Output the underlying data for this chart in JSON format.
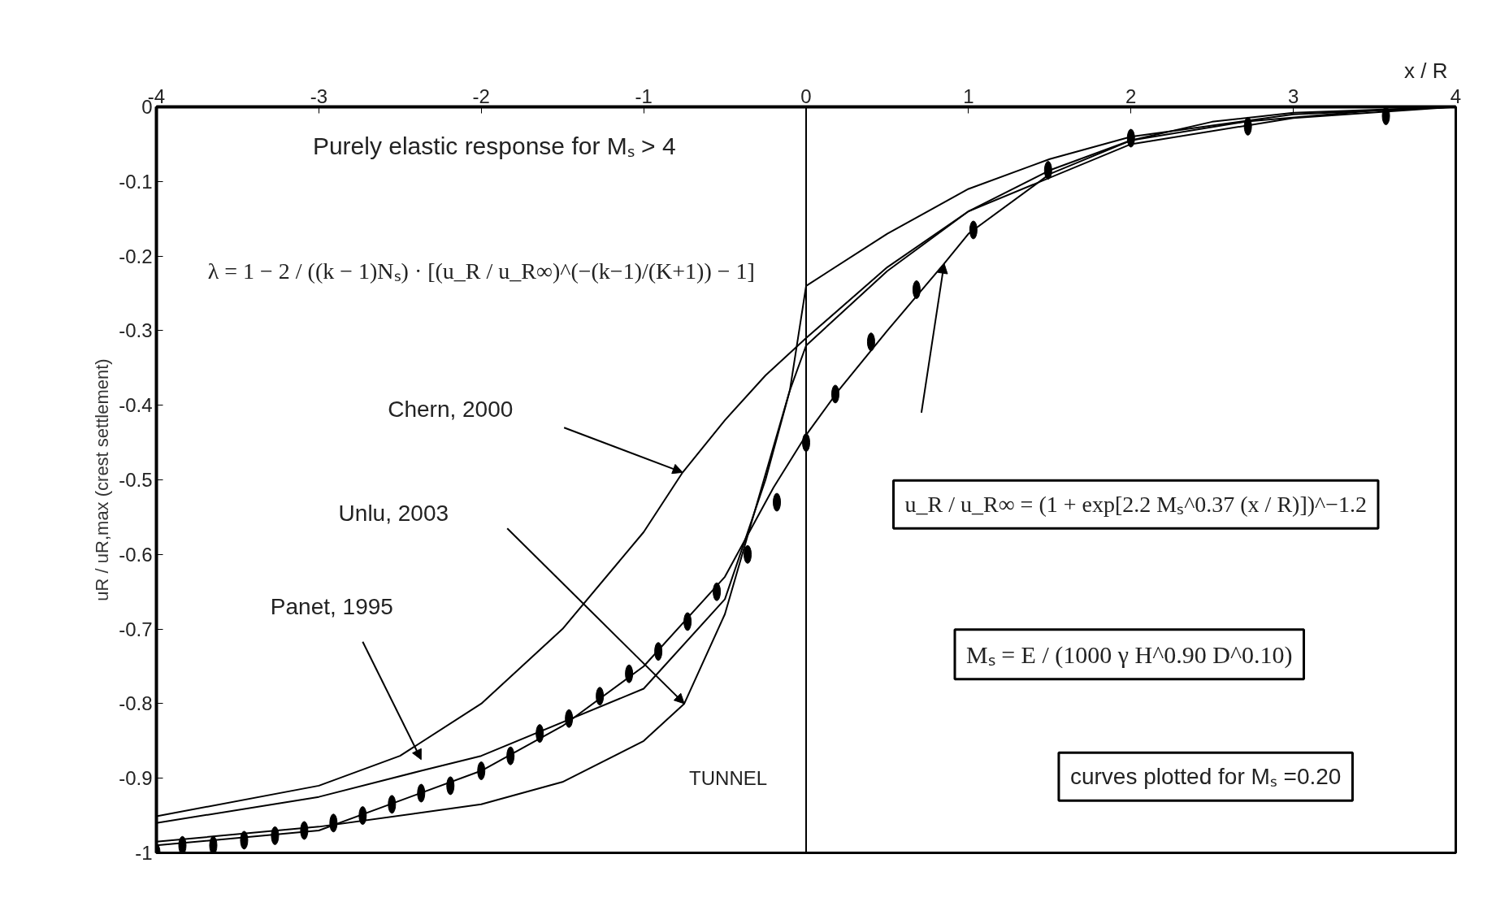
{
  "chart_data": {
    "type": "line",
    "xlabel": "x / R",
    "ylabel": "uR / uR,max (crest settlement)",
    "xlim": [
      -4,
      4
    ],
    "xticks": [
      -4,
      -3,
      -2,
      -1,
      0,
      1,
      2,
      3,
      4
    ],
    "ylim": [
      -1,
      0
    ],
    "yticks": [
      -1,
      -0.9,
      -0.8,
      -0.7,
      -0.6,
      -0.5,
      -0.4,
      -0.3,
      -0.2,
      -0.1,
      0
    ],
    "grid": false,
    "series": [
      {
        "color": "#000000",
        "x": [
          -4,
          -3,
          -2.5,
          -2,
          -1.5,
          -1,
          -0.76,
          -0.5,
          -0.25,
          0,
          0.5,
          1,
          1.5,
          2,
          2.5,
          3,
          4
        ],
        "values": [
          -0.951,
          -0.91,
          -0.87,
          -0.8,
          -0.7,
          -0.57,
          -0.49,
          -0.42,
          -0.36,
          -0.31,
          -0.215,
          -0.14,
          -0.085,
          -0.045,
          -0.02,
          -0.008,
          0
        ]
      },
      {
        "color": "#000000",
        "x": [
          -4,
          -3,
          -2.37,
          -2,
          -1,
          -0.5,
          -0.25,
          -0.1,
          0,
          0.5,
          1,
          1.5,
          2,
          3,
          4
        ],
        "values": [
          -0.96,
          -0.925,
          -0.89,
          -0.87,
          -0.78,
          -0.66,
          -0.5,
          -0.38,
          -0.24,
          -0.17,
          -0.11,
          -0.07,
          -0.04,
          -0.01,
          0
        ]
      },
      {
        "color": "#000000",
        "x": [
          -4,
          -3,
          -2,
          -1.5,
          -1,
          -0.75,
          -0.5,
          -0.3,
          -0.1,
          0,
          0.5,
          1,
          2,
          3,
          4
        ],
        "values": [
          -0.985,
          -0.965,
          -0.935,
          -0.905,
          -0.85,
          -0.8,
          -0.68,
          -0.53,
          -0.38,
          -0.32,
          -0.22,
          -0.14,
          -0.05,
          -0.015,
          0
        ]
      },
      {
        "color": "#000000",
        "x": [
          -4,
          -3,
          -2,
          -1.5,
          -1,
          -0.5,
          -0.2,
          0,
          0.2,
          0.5,
          0.85,
          1,
          1.5,
          2,
          2.7,
          3.5,
          4
        ],
        "values": [
          -0.99,
          -0.97,
          -0.89,
          -0.83,
          -0.75,
          -0.63,
          -0.51,
          -0.44,
          -0.38,
          -0.3,
          -0.21,
          -0.17,
          -0.09,
          -0.045,
          -0.02,
          -0.005,
          0
        ]
      },
      {
        "type": "scatter",
        "color": "#000000",
        "x": [
          -4,
          -3.84,
          -3.65,
          -3.46,
          -3.27,
          -3.09,
          -2.91,
          -2.73,
          -2.55,
          -2.37,
          -2.19,
          -2.0,
          -1.82,
          -1.64,
          -1.46,
          -1.27,
          -1.09,
          -0.91,
          -0.73,
          -0.55,
          -0.36,
          -0.18,
          0.0,
          0.18,
          0.4,
          0.68,
          1.03,
          1.49,
          2.0,
          2.72,
          3.57
        ],
        "values": [
          -1,
          -0.99,
          -0.99,
          -0.983,
          -0.977,
          -0.97,
          -0.96,
          -0.95,
          -0.935,
          -0.92,
          -0.91,
          -0.89,
          -0.87,
          -0.84,
          -0.82,
          -0.79,
          -0.76,
          -0.73,
          -0.69,
          -0.65,
          -0.6,
          -0.53,
          -0.45,
          -0.385,
          -0.315,
          -0.245,
          -0.165,
          -0.085,
          -0.042,
          -0.026,
          -0.012
        ]
      }
    ],
    "ref_lines": [
      {
        "axis": "x",
        "value": 0,
        "color": "#000000"
      }
    ],
    "annotations": [
      "Purely elastic response for Mₛ > 4",
      "λ = 1 − 2 / ((k − 1)Nₛ) · [(u_R / u_R∞)^(−(k−1)/(K+1)) − 1]",
      "Chern, 2000",
      "Unlu, 2003",
      "Panet, 1995",
      "u_R / u_R∞ = (1 + exp[2.2 Mₛ^0.37 (x / R)])^−1.2",
      "Mₛ = E / (1000 γ H^0.90 D^0.10)",
      "curves plotted for Mₛ =0.20",
      "TUNNEL"
    ]
  }
}
